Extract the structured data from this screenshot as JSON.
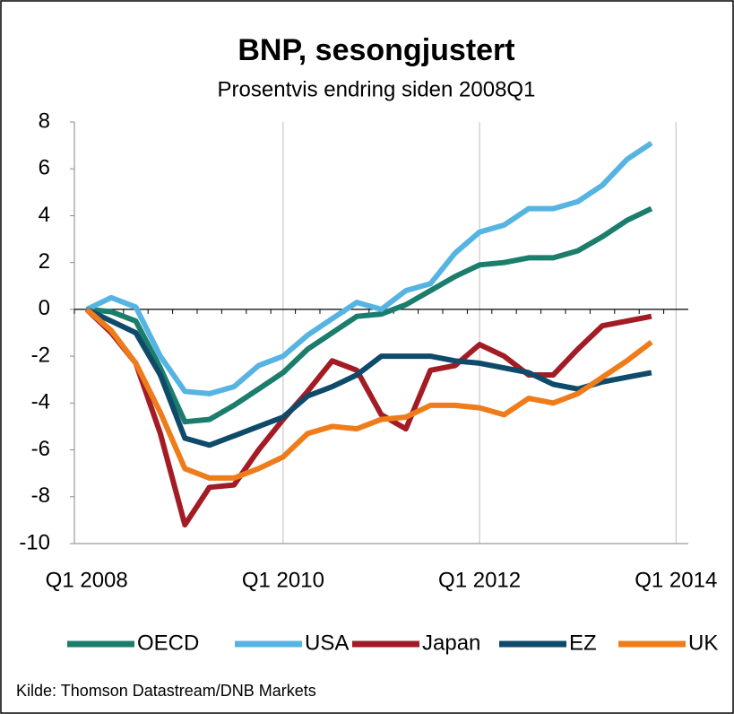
{
  "chart_data": {
    "type": "line",
    "title": "BNP, sesongjustert",
    "subtitle": "Prosentvis endring siden 2008Q1",
    "source": "Kilde: Thomson Datastream/DNB Markets",
    "categories": [
      "Q1 2008",
      null,
      null,
      null,
      null,
      null,
      null,
      null,
      "Q1 2010",
      null,
      null,
      null,
      null,
      null,
      null,
      null,
      "Q1 2012",
      null,
      null,
      null,
      null,
      null,
      null,
      null,
      "Q1 2014"
    ],
    "ylim": [
      -10,
      8
    ],
    "yticks": [
      -10,
      -8,
      -6,
      -4,
      -2,
      0,
      2,
      4,
      6,
      8
    ],
    "grid": true,
    "legend": "bottom",
    "series": [
      {
        "name": "OECD",
        "color": "#1b7d6c",
        "values": [
          0,
          -0.1,
          -0.5,
          -2.5,
          -4.8,
          -4.7,
          -4.1,
          -3.4,
          -2.7,
          -1.7,
          -1.0,
          -0.3,
          -0.2,
          0.2,
          0.8,
          1.4,
          1.9,
          2.0,
          2.2,
          2.2,
          2.5,
          3.1,
          3.8,
          4.3,
          null
        ]
      },
      {
        "name": "USA",
        "color": "#56b4e2",
        "values": [
          0,
          0.5,
          0.1,
          -2.0,
          -3.5,
          -3.6,
          -3.3,
          -2.4,
          -2.0,
          -1.1,
          -0.4,
          0.3,
          0.0,
          0.8,
          1.1,
          2.4,
          3.3,
          3.6,
          4.3,
          4.3,
          4.6,
          5.3,
          6.4,
          7.1,
          null
        ]
      },
      {
        "name": "Japan",
        "color": "#a31c25",
        "values": [
          0,
          -1.0,
          -2.3,
          -5.3,
          -9.2,
          -7.6,
          -7.5,
          -6.0,
          -4.7,
          -3.5,
          -2.2,
          -2.6,
          -4.5,
          -5.1,
          -2.6,
          -2.4,
          -1.5,
          -2.0,
          -2.8,
          -2.8,
          -1.7,
          -0.7,
          -0.5,
          -0.3,
          null
        ]
      },
      {
        "name": "EZ",
        "color": "#0e4a6a",
        "values": [
          0,
          -0.5,
          -1.0,
          -2.8,
          -5.5,
          -5.8,
          -5.4,
          -5.0,
          -4.6,
          -3.7,
          -3.3,
          -2.8,
          -2.0,
          -2.0,
          -2.0,
          -2.2,
          -2.3,
          -2.5,
          -2.7,
          -3.2,
          -3.4,
          -3.1,
          -2.9,
          -2.7,
          null
        ]
      },
      {
        "name": "UK",
        "color": "#ee7c1b",
        "values": [
          0,
          -0.9,
          -2.3,
          -4.4,
          -6.8,
          -7.2,
          -7.2,
          -6.8,
          -6.3,
          -5.3,
          -5.0,
          -5.1,
          -4.7,
          -4.6,
          -4.1,
          -4.1,
          -4.2,
          -4.5,
          -3.8,
          -4.0,
          -3.6,
          -2.9,
          -2.2,
          -1.4,
          null
        ]
      }
    ]
  }
}
